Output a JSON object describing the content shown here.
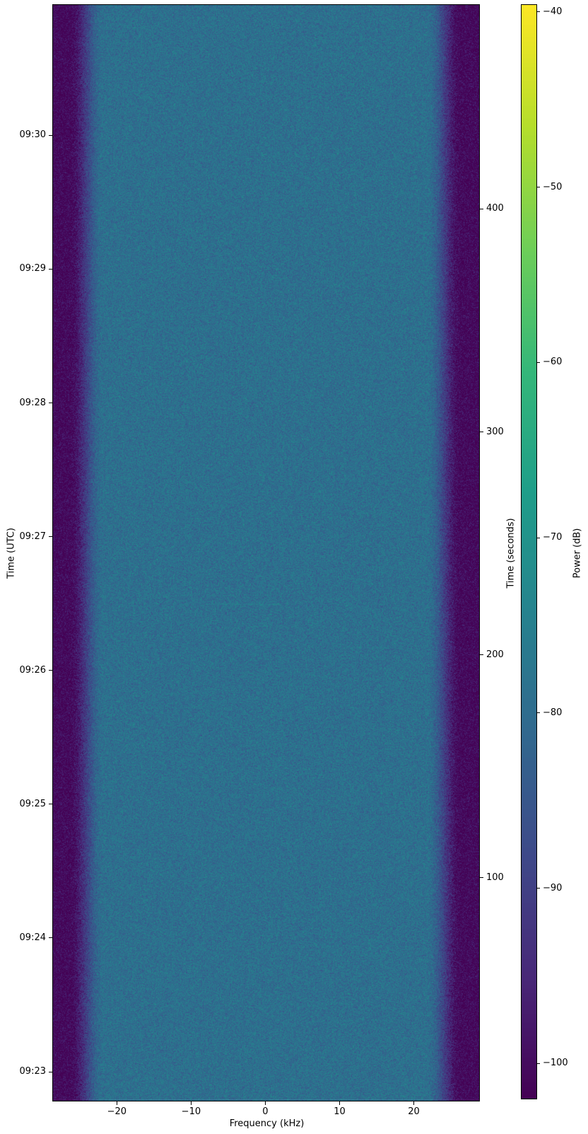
{
  "figure": {
    "background": "#ffffff"
  },
  "chart_data": {
    "type": "heatmap",
    "subtype": "spectrogram-waterfall",
    "title": "",
    "xlabel": "Frequency (kHz)",
    "ylabel_left": "Time (UTC)",
    "ylabel_right": "Time (seconds)",
    "colorbar_label": "Power (dB)",
    "xlim": [
      -28.6,
      28.8
    ],
    "x_ticks": [
      {
        "v": -20,
        "label": "−20"
      },
      {
        "v": -10,
        "label": "−10"
      },
      {
        "v": 0,
        "label": "0"
      },
      {
        "v": 10,
        "label": "10"
      },
      {
        "v": 20,
        "label": "20"
      }
    ],
    "time_ticks_utc": [
      {
        "label": "09:30",
        "seconds": 433
      },
      {
        "label": "09:29",
        "seconds": 373
      },
      {
        "label": "09:28",
        "seconds": 313
      },
      {
        "label": "09:27",
        "seconds": 253
      },
      {
        "label": "09:26",
        "seconds": 193
      },
      {
        "label": "09:25",
        "seconds": 133
      },
      {
        "label": "09:24",
        "seconds": 73
      },
      {
        "label": "09:23",
        "seconds": 13
      }
    ],
    "seconds_range": [
      0,
      491.5
    ],
    "seconds_ticks": [
      {
        "v": 400,
        "label": "400"
      },
      {
        "v": 300,
        "label": "300"
      },
      {
        "v": 200,
        "label": "200"
      },
      {
        "v": 100,
        "label": "100"
      }
    ],
    "power_range_db": [
      -102,
      -39.6
    ],
    "colorbar_ticks": [
      {
        "v": -40,
        "label": "−40"
      },
      {
        "v": -50,
        "label": "−50"
      },
      {
        "v": -60,
        "label": "−60"
      },
      {
        "v": -70,
        "label": "−70"
      },
      {
        "v": -80,
        "label": "−80"
      },
      {
        "v": -90,
        "label": "−90"
      },
      {
        "v": -100,
        "label": "−100"
      }
    ],
    "colormap": {
      "name": "viridis",
      "stops": [
        "#440154",
        "#482878",
        "#3e4989",
        "#31688e",
        "#26828e",
        "#1f9e89",
        "#35b779",
        "#6ece58",
        "#b5de2b",
        "#fde725"
      ]
    },
    "signal": {
      "passband_mean_db": -79,
      "noise_floor_db": -101,
      "passband_edge_khz": 21.8,
      "stopband_edge_khz": 26.4,
      "noise_spread_db": 8,
      "transient": {
        "seconds": 223,
        "f_from_khz": -8,
        "f_to_khz": 2,
        "boost_db": 2.5
      }
    }
  }
}
